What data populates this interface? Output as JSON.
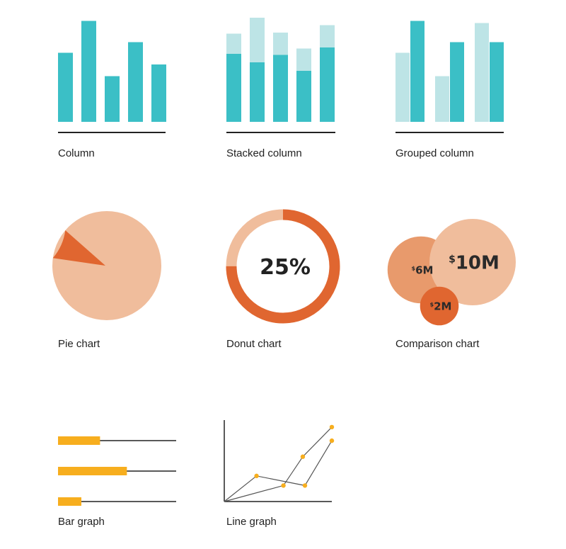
{
  "colors": {
    "teal": "#3bbfc6",
    "teal_light": "#bde4e6",
    "orange_light": "#f0bd9c",
    "orange_mid": "#e89a6c",
    "orange_dark": "#e06630",
    "yellow": "#f7ae1e",
    "axis": "#222222",
    "text": "#222222",
    "line": "#555555"
  },
  "captions": {
    "column": "Column",
    "stacked": "Stacked column",
    "grouped": "Grouped column",
    "pie": "Pie chart",
    "donut": "Donut chart",
    "comparison": "Comparison chart",
    "bar": "Bar graph",
    "line": "Line graph"
  },
  "chart_data": [
    {
      "type": "bar",
      "title": "Column",
      "values": [
        65,
        95,
        43,
        75,
        54
      ],
      "ylim": [
        0,
        100
      ]
    },
    {
      "type": "bar",
      "title": "Stacked column",
      "stacked": true,
      "series": [
        {
          "values": [
            64,
            56,
            63,
            48,
            70
          ]
        },
        {
          "values": [
            19,
            42,
            21,
            21,
            21
          ]
        }
      ],
      "ylim": [
        0,
        100
      ]
    },
    {
      "type": "bar",
      "title": "Grouped column",
      "series": [
        {
          "values": [
            65,
            43,
            93
          ]
        },
        {
          "values": [
            95,
            75,
            75
          ]
        }
      ],
      "ylim": [
        0,
        100
      ]
    },
    {
      "type": "pie",
      "title": "Pie chart",
      "values": [
        9,
        91
      ]
    },
    {
      "type": "pie",
      "title": "Donut chart",
      "donut": true,
      "values": [
        75,
        25
      ],
      "center_label": "25%"
    },
    {
      "type": "scatter",
      "title": "Comparison chart",
      "bubbles": [
        {
          "label": "$10M",
          "value": 10
        },
        {
          "label": "$6M",
          "value": 6
        },
        {
          "label": "$2M",
          "value": 2
        }
      ]
    },
    {
      "type": "bar",
      "orientation": "horizontal",
      "title": "Bar graph",
      "values": [
        36,
        59,
        20
      ],
      "xlim": [
        0,
        100
      ]
    },
    {
      "type": "line",
      "title": "Line graph",
      "series": [
        {
          "points": [
            [
              0,
              0
            ],
            [
              30,
              32
            ],
            [
              75,
              20
            ],
            [
              100,
              76
            ]
          ]
        },
        {
          "points": [
            [
              0,
              0
            ],
            [
              55,
              20
            ],
            [
              73,
              56
            ],
            [
              100,
              93
            ]
          ]
        }
      ],
      "xlim": [
        0,
        100
      ],
      "ylim": [
        0,
        100
      ]
    }
  ]
}
